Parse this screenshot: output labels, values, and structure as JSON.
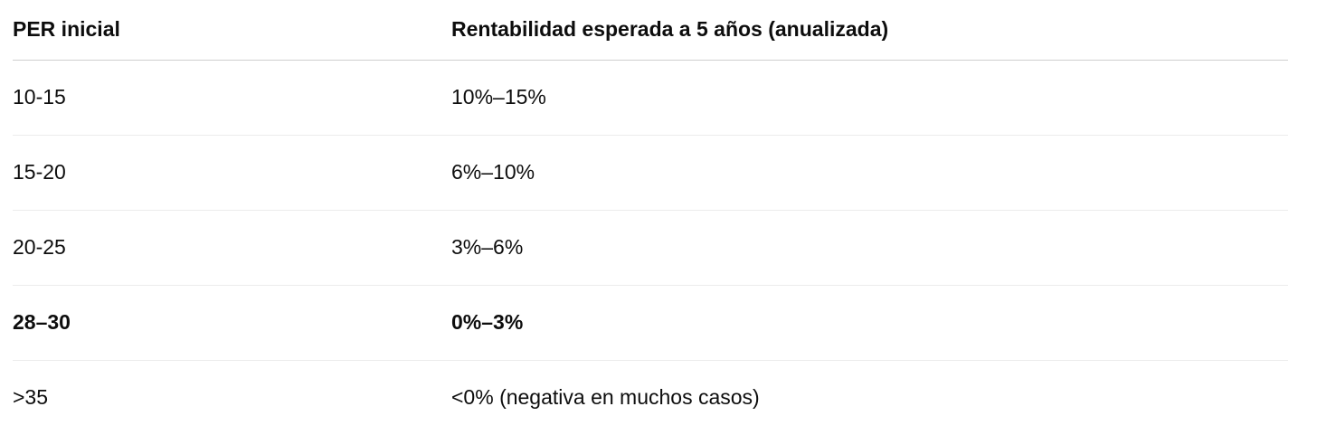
{
  "table": {
    "headers": [
      "PER inicial",
      "Rentabilidad esperada a 5 años (anualizada)"
    ],
    "rows": [
      {
        "per": "10-15",
        "rentabilidad": "10%–15%",
        "bold": false
      },
      {
        "per": "15-20",
        "rentabilidad": "6%–10%",
        "bold": false
      },
      {
        "per": "20-25",
        "rentabilidad": "3%–6%",
        "bold": false
      },
      {
        "per": "28–30",
        "rentabilidad": "0%–3%",
        "bold": true
      },
      {
        "per": ">35",
        "rentabilidad": "<0% (negativa en muchos casos)",
        "bold": false
      }
    ]
  }
}
